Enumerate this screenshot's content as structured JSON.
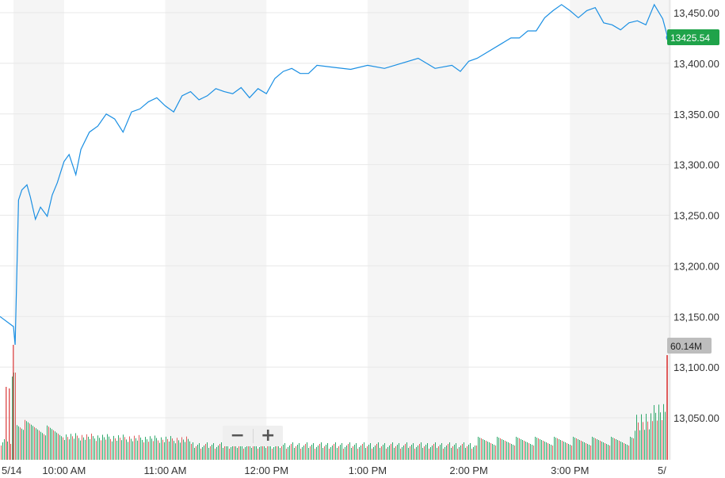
{
  "zoom": {
    "minus_label": "−",
    "plus_label": "+"
  },
  "colors": {
    "line": "#1a8fe3",
    "band": "#f5f5f5",
    "grid": "#e8e8e8",
    "vol_up": "#2ea86b",
    "vol_down": "#e05c5c",
    "last_price_badge": "#1fa34a",
    "volume_badge": "#bdbdbd"
  },
  "chart_data": {
    "type": "line",
    "y_ticks": [
      "13,050.00",
      "13,100.00",
      "13,150.00",
      "13,200.00",
      "13,250.00",
      "13,300.00",
      "13,350.00",
      "13,400.00",
      "13,450.00"
    ],
    "y_tick_values": [
      13050,
      13100,
      13150,
      13200,
      13250,
      13300,
      13350,
      13400,
      13450
    ],
    "ylim": [
      13010,
      13465
    ],
    "x_ticks": [
      "5/14",
      "10:00 AM",
      "11:00 AM",
      "12:00 PM",
      "1:00 PM",
      "2:00 PM",
      "3:00 PM",
      "5/"
    ],
    "x_tick_times": [
      "9:30",
      "10:00",
      "11:00",
      "12:00",
      "13:00",
      "14:00",
      "15:00",
      "16:00"
    ],
    "last_price_label": "13425.54",
    "last_price": 13425.54,
    "volume_label": "60.14M",
    "series": [
      {
        "x": [
          "9:28",
          "9:30",
          "9:31",
          "9:33",
          "9:35",
          "9:38",
          "9:40",
          "9:43",
          "9:46",
          "9:50",
          "9:53",
          "9:56",
          "10:00",
          "10:03",
          "10:07",
          "10:10",
          "10:15",
          "10:20",
          "10:25",
          "10:30",
          "10:35",
          "10:40",
          "10:45",
          "10:50",
          "10:55",
          "11:00",
          "11:05",
          "11:10",
          "11:15",
          "11:20",
          "11:25",
          "11:30",
          "11:35",
          "11:40",
          "11:45",
          "11:50",
          "11:55",
          "12:00",
          "12:05",
          "12:10",
          "12:15",
          "12:20",
          "12:25",
          "12:30",
          "12:40",
          "12:50",
          "13:00",
          "13:10",
          "13:20",
          "13:30",
          "13:40",
          "13:50",
          "13:55",
          "14:00",
          "14:05",
          "14:10",
          "14:20",
          "14:25",
          "14:30",
          "14:35",
          "14:40",
          "14:45",
          "14:50",
          "14:55",
          "15:00",
          "15:05",
          "15:10",
          "15:15",
          "15:20",
          "15:25",
          "15:30",
          "15:35",
          "15:40",
          "15:45",
          "15:50",
          "15:55",
          "15:58"
        ],
        "values": [
          13150,
          13140,
          13122,
          13265,
          13275,
          13280,
          13268,
          13246,
          13258,
          13249,
          13270,
          13282,
          13303,
          13310,
          13290,
          13315,
          13332,
          13338,
          13350,
          13345,
          13332,
          13352,
          13355,
          13362,
          13366,
          13358,
          13352,
          13368,
          13372,
          13364,
          13368,
          13375,
          13372,
          13370,
          13376,
          13366,
          13375,
          13370,
          13385,
          13392,
          13395,
          13390,
          13390,
          13398,
          13396,
          13394,
          13398,
          13395,
          13400,
          13405,
          13395,
          13398,
          13392,
          13402,
          13405,
          13410,
          13420,
          13425,
          13425,
          13432,
          13432,
          13445,
          13452,
          13458,
          13452,
          13445,
          13452,
          13455,
          13440,
          13438,
          13433,
          13440,
          13442,
          13438,
          13458,
          13444,
          13425.54
        ]
      }
    ],
    "volume": {
      "up_color": "#2ea86b",
      "down_color": "#e05c5c",
      "bars_millions": [
        {
          "t": "9:30",
          "v": 60,
          "dir": "down"
        },
        {
          "t": "9:31",
          "v": 68,
          "dir": "down"
        },
        {
          "t": "9:32",
          "v": 14,
          "dir": "up"
        }
      ]
    }
  }
}
